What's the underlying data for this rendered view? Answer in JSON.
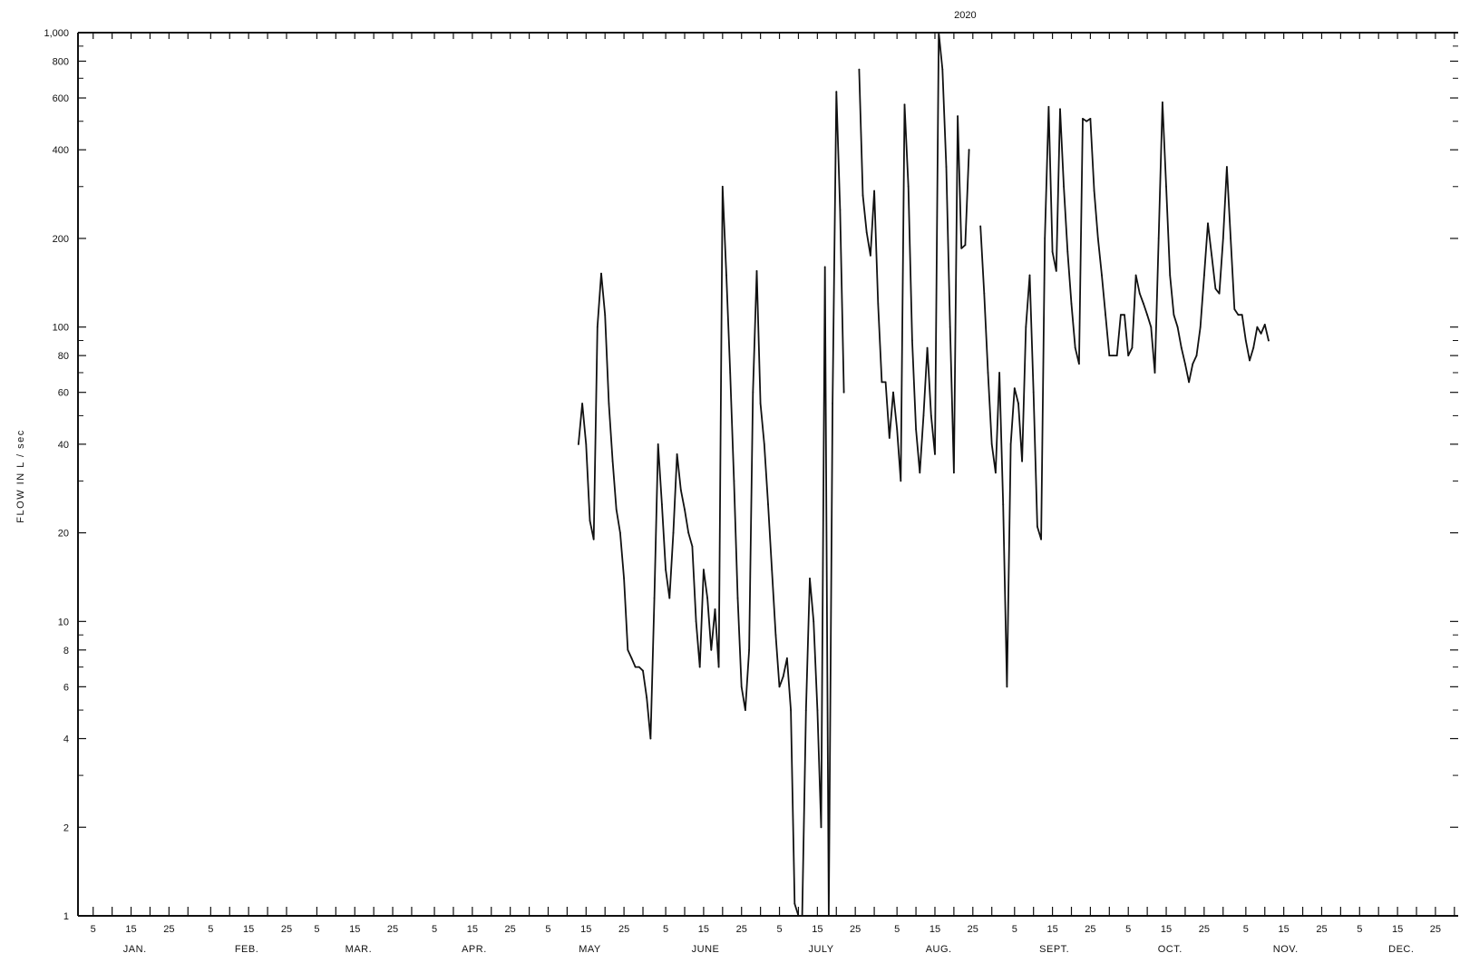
{
  "chart_data": {
    "type": "line",
    "title": "",
    "ylabel": "FLOW IN L / sec",
    "xlabel": "",
    "y_scale": "log",
    "ylim": [
      1,
      1000
    ],
    "x_range_days": [
      1,
      365
    ],
    "grid": false,
    "y_tick_labels": [
      {
        "value": 1,
        "label": "1"
      },
      {
        "value": 2,
        "label": "2"
      },
      {
        "value": 4,
        "label": "4"
      },
      {
        "value": 6,
        "label": "6"
      },
      {
        "value": 8,
        "label": "8"
      },
      {
        "value": 10,
        "label": "10"
      },
      {
        "value": 20,
        "label": "20"
      },
      {
        "value": 40,
        "label": "40"
      },
      {
        "value": 60,
        "label": "60"
      },
      {
        "value": 80,
        "label": "80"
      },
      {
        "value": 100,
        "label": "100"
      },
      {
        "value": 200,
        "label": "200"
      },
      {
        "value": 400,
        "label": "400"
      },
      {
        "value": 600,
        "label": "600"
      },
      {
        "value": 800,
        "label": "800"
      },
      {
        "value": 1000,
        "label": "1,000"
      }
    ],
    "y_minor_ticks": [
      3,
      5,
      7,
      9,
      30,
      50,
      70,
      90,
      300,
      500,
      700,
      900
    ],
    "months": [
      {
        "label": "JAN.",
        "start": 1,
        "days": 31
      },
      {
        "label": "FEB.",
        "start": 32,
        "days": 28
      },
      {
        "label": "MAR.",
        "start": 60,
        "days": 31
      },
      {
        "label": "APR.",
        "start": 91,
        "days": 30
      },
      {
        "label": "MAY",
        "start": 121,
        "days": 31
      },
      {
        "label": "JUNE",
        "start": 152,
        "days": 30
      },
      {
        "label": "JULY",
        "start": 182,
        "days": 31
      },
      {
        "label": "AUG.",
        "start": 213,
        "days": 31
      },
      {
        "label": "SEPT.",
        "start": 244,
        "days": 30
      },
      {
        "label": "OCT.",
        "start": 274,
        "days": 31
      },
      {
        "label": "NOV.",
        "start": 305,
        "days": 30
      },
      {
        "label": "DEC.",
        "start": 335,
        "days": 31
      }
    ],
    "day_tick_labels": [
      "5",
      "15",
      "25"
    ],
    "annotations": [
      {
        "text": "2020",
        "x": "AUG. 23",
        "y": 1000
      }
    ],
    "series": [
      {
        "name": "",
        "segments": [
          [
            [
              "MAY 13",
              40
            ],
            [
              "MAY 14",
              55
            ],
            [
              "MAY 15",
              40
            ],
            [
              "MAY 16",
              22
            ],
            [
              "MAY 17",
              19
            ],
            [
              "MAY 18",
              100
            ],
            [
              "MAY 19",
              152
            ],
            [
              "MAY 20",
              110
            ],
            [
              "MAY 21",
              55
            ],
            [
              "MAY 22",
              35
            ],
            [
              "MAY 23",
              24
            ],
            [
              "MAY 24",
              20
            ],
            [
              "MAY 25",
              14
            ],
            [
              "MAY 26",
              8
            ],
            [
              "MAY 27",
              7.5
            ],
            [
              "MAY 28",
              7
            ],
            [
              "MAY 29",
              7
            ],
            [
              "MAY 30",
              6.8
            ],
            [
              "MAY 31",
              5.5
            ],
            [
              "JUNE 1",
              4
            ],
            [
              "JUNE 2",
              12
            ],
            [
              "JUNE 3",
              40
            ],
            [
              "JUNE 4",
              25
            ],
            [
              "JUNE 5",
              15
            ],
            [
              "JUNE 6",
              12
            ],
            [
              "JUNE 7",
              20
            ],
            [
              "JUNE 8",
              37
            ],
            [
              "JUNE 9",
              28
            ],
            [
              "JUNE 10",
              24
            ],
            [
              "JUNE 11",
              20
            ],
            [
              "JUNE 12",
              18
            ],
            [
              "JUNE 13",
              10
            ],
            [
              "JUNE 14",
              7
            ],
            [
              "JUNE 15",
              15
            ],
            [
              "JUNE 16",
              12
            ],
            [
              "JUNE 17",
              8
            ],
            [
              "JUNE 18",
              11
            ],
            [
              "JUNE 19",
              7
            ],
            [
              "JUNE 20",
              300
            ],
            [
              "JUNE 21",
              150
            ],
            [
              "JUNE 22",
              70
            ],
            [
              "JUNE 23",
              30
            ],
            [
              "JUNE 24",
              12
            ],
            [
              "JUNE 25",
              6
            ],
            [
              "JUNE 26",
              5
            ],
            [
              "JUNE 27",
              8
            ],
            [
              "JUNE 28",
              60
            ],
            [
              "JUNE 29",
              155
            ],
            [
              "JUNE 30",
              55
            ],
            [
              "JULY 1",
              40
            ],
            [
              "JULY 2",
              25
            ],
            [
              "JULY 3",
              15
            ],
            [
              "JULY 4",
              9
            ],
            [
              "JULY 5",
              6
            ],
            [
              "JULY 6",
              6.5
            ],
            [
              "JULY 7",
              7.5
            ],
            [
              "JULY 8",
              5
            ],
            [
              "JULY 9",
              1.1
            ],
            [
              "JULY 10",
              1
            ],
            [
              "JULY 11",
              1
            ],
            [
              "JULY 12",
              5
            ],
            [
              "JULY 13",
              14
            ],
            [
              "JULY 14",
              10
            ],
            [
              "JULY 15",
              5
            ],
            [
              "JULY 16",
              2
            ],
            [
              "JULY 17",
              160
            ],
            [
              "JULY 18",
              1
            ],
            [
              "JULY 19",
              55
            ],
            [
              "JULY 20",
              630
            ],
            [
              "JULY 21",
              250
            ],
            [
              "JULY 22",
              60
            ]
          ],
          [
            [
              "JULY 26",
              750
            ],
            [
              "JULY 27",
              280
            ],
            [
              "JULY 28",
              210
            ],
            [
              "JULY 29",
              175
            ],
            [
              "JULY 30",
              290
            ],
            [
              "JULY 31",
              120
            ],
            [
              "AUG. 1",
              65
            ],
            [
              "AUG. 2",
              65
            ],
            [
              "AUG. 3",
              42
            ],
            [
              "AUG. 4",
              60
            ],
            [
              "AUG. 5",
              45
            ],
            [
              "AUG. 6",
              30
            ],
            [
              "AUG. 7",
              570
            ],
            [
              "AUG. 8",
              300
            ],
            [
              "AUG. 9",
              90
            ],
            [
              "AUG. 10",
              45
            ],
            [
              "AUG. 11",
              32
            ],
            [
              "AUG. 12",
              50
            ],
            [
              "AUG. 13",
              85
            ],
            [
              "AUG. 14",
              50
            ],
            [
              "AUG. 15",
              37
            ],
            [
              "AUG. 16",
              1000
            ],
            [
              "AUG. 17",
              750
            ],
            [
              "AUG. 18",
              350
            ],
            [
              "AUG. 19",
              100
            ],
            [
              "AUG. 20",
              32
            ],
            [
              "AUG. 21",
              520
            ],
            [
              "AUG. 22",
              185
            ],
            [
              "AUG. 23",
              190
            ],
            [
              "AUG. 24",
              400
            ]
          ],
          [
            [
              "AUG. 27",
              220
            ],
            [
              "AUG. 28",
              130
            ],
            [
              "AUG. 29",
              70
            ],
            [
              "AUG. 30",
              40
            ],
            [
              "AUG. 31",
              32
            ],
            [
              "SEPT. 1",
              70
            ],
            [
              "SEPT. 2",
              25
            ],
            [
              "SEPT. 3",
              6
            ],
            [
              "SEPT. 4",
              40
            ],
            [
              "SEPT. 5",
              62
            ],
            [
              "SEPT. 6",
              55
            ],
            [
              "SEPT. 7",
              35
            ],
            [
              "SEPT. 8",
              100
            ],
            [
              "SEPT. 9",
              150
            ],
            [
              "SEPT. 10",
              60
            ],
            [
              "SEPT. 11",
              21
            ],
            [
              "SEPT. 12",
              19
            ],
            [
              "SEPT. 13",
              200
            ],
            [
              "SEPT. 14",
              560
            ],
            [
              "SEPT. 15",
              180
            ],
            [
              "SEPT. 16",
              155
            ],
            [
              "SEPT. 17",
              550
            ],
            [
              "SEPT. 18",
              300
            ],
            [
              "SEPT. 19",
              180
            ],
            [
              "SEPT. 20",
              120
            ],
            [
              "SEPT. 21",
              85
            ],
            [
              "SEPT. 22",
              75
            ],
            [
              "SEPT. 23",
              510
            ],
            [
              "SEPT. 24",
              500
            ],
            [
              "SEPT. 25",
              510
            ],
            [
              "SEPT. 26",
              290
            ],
            [
              "SEPT. 27",
              200
            ],
            [
              "SEPT. 28",
              150
            ],
            [
              "SEPT. 29",
              110
            ],
            [
              "SEPT. 30",
              80
            ],
            [
              "OCT. 1",
              80
            ],
            [
              "OCT. 2",
              80
            ],
            [
              "OCT. 3",
              110
            ],
            [
              "OCT. 4",
              110
            ],
            [
              "OCT. 5",
              80
            ],
            [
              "OCT. 6",
              85
            ],
            [
              "OCT. 7",
              150
            ],
            [
              "OCT. 8",
              130
            ],
            [
              "OCT. 9",
              120
            ],
            [
              "OCT. 10",
              110
            ],
            [
              "OCT. 11",
              100
            ],
            [
              "OCT. 12",
              70
            ],
            [
              "OCT. 13",
              200
            ],
            [
              "OCT. 14",
              580
            ],
            [
              "OCT. 15",
              300
            ],
            [
              "OCT. 16",
              150
            ],
            [
              "OCT. 17",
              110
            ],
            [
              "OCT. 18",
              100
            ],
            [
              "OCT. 19",
              85
            ],
            [
              "OCT. 20",
              75
            ],
            [
              "OCT. 21",
              65
            ],
            [
              "OCT. 22",
              75
            ],
            [
              "OCT. 23",
              80
            ],
            [
              "OCT. 24",
              100
            ],
            [
              "OCT. 25",
              150
            ],
            [
              "OCT. 26",
              225
            ],
            [
              "OCT. 27",
              175
            ],
            [
              "OCT. 28",
              135
            ],
            [
              "OCT. 29",
              130
            ],
            [
              "OCT. 30",
              200
            ],
            [
              "OCT. 31",
              350
            ],
            [
              "NOV. 1",
              200
            ],
            [
              "NOV. 2",
              115
            ],
            [
              "NOV. 3",
              110
            ],
            [
              "NOV. 4",
              110
            ],
            [
              "NOV. 5",
              90
            ],
            [
              "NOV. 6",
              77
            ],
            [
              "NOV. 7",
              85
            ],
            [
              "NOV. 8",
              100
            ],
            [
              "NOV. 9",
              95
            ],
            [
              "NOV. 10",
              102
            ],
            [
              "NOV. 11",
              90
            ]
          ]
        ]
      }
    ]
  }
}
